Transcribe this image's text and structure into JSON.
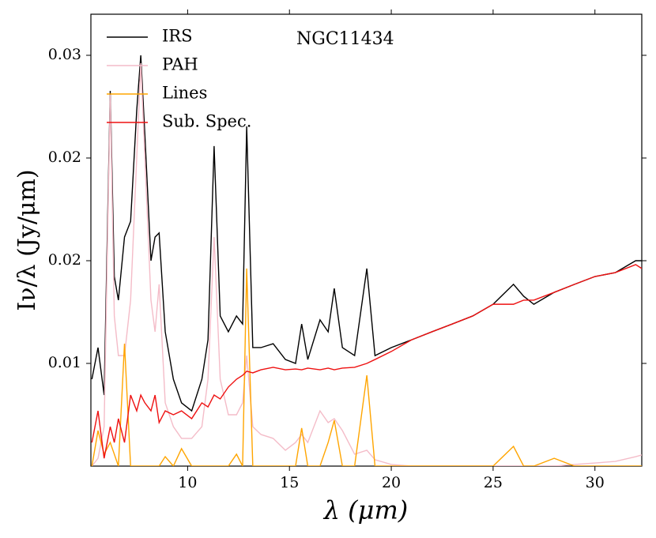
{
  "chart_data": {
    "type": "line",
    "title": "NGC11434",
    "x_label": "λ (μm)",
    "y_label": "Iν/λ (Jy/μm)",
    "x": [
      5.3,
      5.6,
      5.9,
      6.2,
      6.4,
      6.6,
      6.9,
      7.2,
      7.5,
      7.7,
      7.9,
      8.2,
      8.4,
      8.6,
      8.9,
      9.3,
      9.7,
      10.2,
      10.7,
      11.0,
      11.3,
      11.6,
      12.0,
      12.4,
      12.7,
      12.9,
      13.2,
      13.6,
      14.2,
      14.8,
      15.3,
      15.6,
      15.9,
      16.5,
      16.9,
      17.2,
      17.6,
      18.2,
      18.8,
      19.2,
      20,
      21,
      22,
      23,
      24,
      25,
      26,
      26.5,
      27,
      28,
      29,
      30,
      31,
      32,
      32.3
    ],
    "series": [
      {
        "name": "IRS",
        "color": "#000000",
        "values": [
          0.00923,
          0.01077,
          0.00846,
          0.02327,
          0.01423,
          0.01308,
          0.01615,
          0.01692,
          0.02231,
          0.025,
          0.02115,
          0.015,
          0.01615,
          0.01635,
          0.01154,
          0.00923,
          0.00808,
          0.00769,
          0.00923,
          0.01115,
          0.02058,
          0.01231,
          0.01154,
          0.01231,
          0.01192,
          0.02154,
          0.01077,
          0.01077,
          0.01096,
          0.01019,
          0.01,
          0.01192,
          0.01019,
          0.01212,
          0.01154,
          0.01365,
          0.01077,
          0.01038,
          0.01462,
          0.01038,
          0.01077,
          0.01115,
          0.01154,
          0.01192,
          0.01231,
          0.01288,
          0.01385,
          0.01327,
          0.01288,
          0.01346,
          0.01385,
          0.01423,
          0.01442,
          0.015,
          0.015
        ]
      },
      {
        "name": "PAH",
        "color": "#f4bcc8",
        "values": [
          0.005,
          0.00538,
          0.00692,
          0.02308,
          0.01231,
          0.01038,
          0.01038,
          0.01308,
          0.02,
          0.02462,
          0.02,
          0.01308,
          0.01154,
          0.01385,
          0.00808,
          0.00692,
          0.00635,
          0.00635,
          0.00692,
          0.00923,
          0.01615,
          0.00923,
          0.0075,
          0.0075,
          0.00808,
          0.01038,
          0.00692,
          0.00654,
          0.00635,
          0.00577,
          0.00615,
          0.00654,
          0.00615,
          0.00769,
          0.00712,
          0.00731,
          0.00673,
          0.00558,
          0.00577,
          0.00531,
          0.00508,
          0.005,
          0.005,
          0.005,
          0.005,
          0.005,
          0.005,
          0.005,
          0.005,
          0.005,
          0.00508,
          0.00515,
          0.00523,
          0.00546,
          0.00554
        ]
      },
      {
        "name": "Lines",
        "color": "#ffa500",
        "values": [
          0.005,
          0.00673,
          0.00558,
          0.00615,
          0.00558,
          0.005,
          0.01096,
          0.005,
          0.005,
          0.005,
          0.005,
          0.005,
          0.005,
          0.005,
          0.00546,
          0.005,
          0.00585,
          0.005,
          0.005,
          0.005,
          0.005,
          0.005,
          0.005,
          0.00558,
          0.005,
          0.01462,
          0.005,
          0.005,
          0.005,
          0.005,
          0.005,
          0.00685,
          0.005,
          0.005,
          0.00615,
          0.00723,
          0.005,
          0.005,
          0.00942,
          0.005,
          0.005,
          0.005,
          0.005,
          0.005,
          0.005,
          0.005,
          0.00596,
          0.005,
          0.005,
          0.00538,
          0.005,
          0.005,
          0.005,
          0.005,
          0.005
        ]
      },
      {
        "name": "Sub. Spec.",
        "color": "#ee1111",
        "values": [
          0.00615,
          0.00769,
          0.00538,
          0.00692,
          0.00615,
          0.00731,
          0.00615,
          0.00846,
          0.00769,
          0.00846,
          0.00808,
          0.00769,
          0.00846,
          0.00712,
          0.00769,
          0.0075,
          0.00769,
          0.00731,
          0.00808,
          0.00788,
          0.00846,
          0.00827,
          0.00885,
          0.00923,
          0.00942,
          0.00962,
          0.00954,
          0.00969,
          0.00981,
          0.00969,
          0.00973,
          0.00969,
          0.00977,
          0.00969,
          0.00977,
          0.00969,
          0.00977,
          0.00981,
          0.01,
          0.01019,
          0.01058,
          0.01115,
          0.01154,
          0.01192,
          0.01231,
          0.01288,
          0.01288,
          0.01308,
          0.01308,
          0.01346,
          0.01385,
          0.01423,
          0.01442,
          0.01481,
          0.01462
        ]
      }
    ],
    "xlim": [
      5.25,
      32.3
    ],
    "ylim": [
      0.005,
      0.027
    ],
    "xticks": [
      10,
      15,
      20,
      25,
      30
    ],
    "yticks": [
      {
        "value": 0.01,
        "label": "0.01"
      },
      {
        "value": 0.015,
        "label": "0.02"
      },
      {
        "value": 0.02,
        "label": "0.02"
      },
      {
        "value": 0.025,
        "label": "0.03"
      }
    ],
    "legend": "upper left",
    "grid": false
  }
}
